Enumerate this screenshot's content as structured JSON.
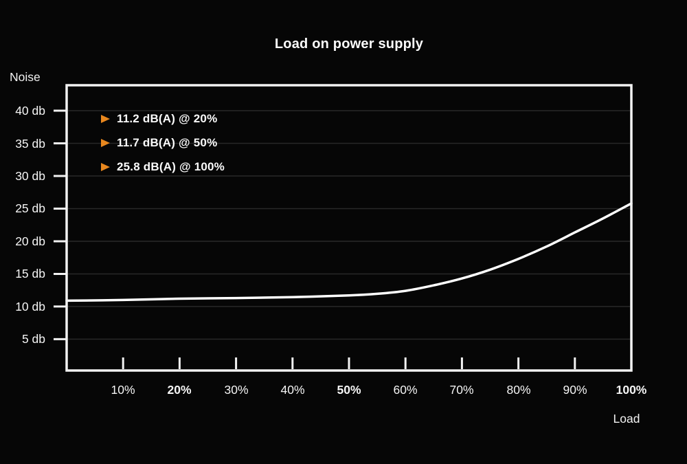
{
  "page": {
    "background": "#060606"
  },
  "chart_data": {
    "type": "line",
    "title": "Load on power supply",
    "xlabel": "Load",
    "ylabel": "Noise",
    "xlim": [
      0,
      100
    ],
    "ylim": [
      0.2,
      43.9
    ],
    "grid": "horizontal",
    "legend_position": "top-left-inside",
    "colors": {
      "curve": "#ffffff",
      "axis": "#f2f2f2",
      "gridline": "#282828",
      "annotation_marker": "#e8871e",
      "text": "#f5f5f5",
      "background": "#060606"
    },
    "x_ticks": [
      {
        "label": "10%",
        "value": 10,
        "bold": false,
        "tick": true
      },
      {
        "label": "20%",
        "value": 20,
        "bold": true,
        "tick": true
      },
      {
        "label": "30%",
        "value": 30,
        "bold": false,
        "tick": true
      },
      {
        "label": "40%",
        "value": 40,
        "bold": false,
        "tick": true
      },
      {
        "label": "50%",
        "value": 50,
        "bold": true,
        "tick": true
      },
      {
        "label": "60%",
        "value": 60,
        "bold": false,
        "tick": true
      },
      {
        "label": "70%",
        "value": 70,
        "bold": false,
        "tick": true
      },
      {
        "label": "80%",
        "value": 80,
        "bold": false,
        "tick": true
      },
      {
        "label": "90%",
        "value": 90,
        "bold": false,
        "tick": true
      },
      {
        "label": "100%",
        "value": 100,
        "bold": true,
        "tick": false
      }
    ],
    "y_ticks": [
      {
        "label": "40 db",
        "value": 40
      },
      {
        "label": "35 db",
        "value": 35
      },
      {
        "label": "30 db",
        "value": 30
      },
      {
        "label": "25 db",
        "value": 25
      },
      {
        "label": "20 db",
        "value": 20
      },
      {
        "label": "15 db",
        "value": 15
      },
      {
        "label": "10 db",
        "value": 10
      },
      {
        "label": "5 db",
        "value": 5
      }
    ],
    "annotations": [
      {
        "marker": "triangle-right-icon",
        "text": "11.2 dB(A) @ 20%"
      },
      {
        "marker": "triangle-right-icon",
        "text": "11.7 dB(A) @ 50%"
      },
      {
        "marker": "triangle-right-icon",
        "text": "25.8 dB(A) @ 100%"
      }
    ],
    "series": [
      {
        "points": [
          [
            0,
            10.9
          ],
          [
            10,
            11.0
          ],
          [
            20,
            11.2
          ],
          [
            30,
            11.3
          ],
          [
            40,
            11.45
          ],
          [
            50,
            11.7
          ],
          [
            55,
            11.95
          ],
          [
            60,
            12.4
          ],
          [
            65,
            13.25
          ],
          [
            70,
            14.3
          ],
          [
            75,
            15.65
          ],
          [
            80,
            17.3
          ],
          [
            85,
            19.2
          ],
          [
            90,
            21.35
          ],
          [
            95,
            23.5
          ],
          [
            100,
            25.8
          ]
        ]
      }
    ]
  }
}
